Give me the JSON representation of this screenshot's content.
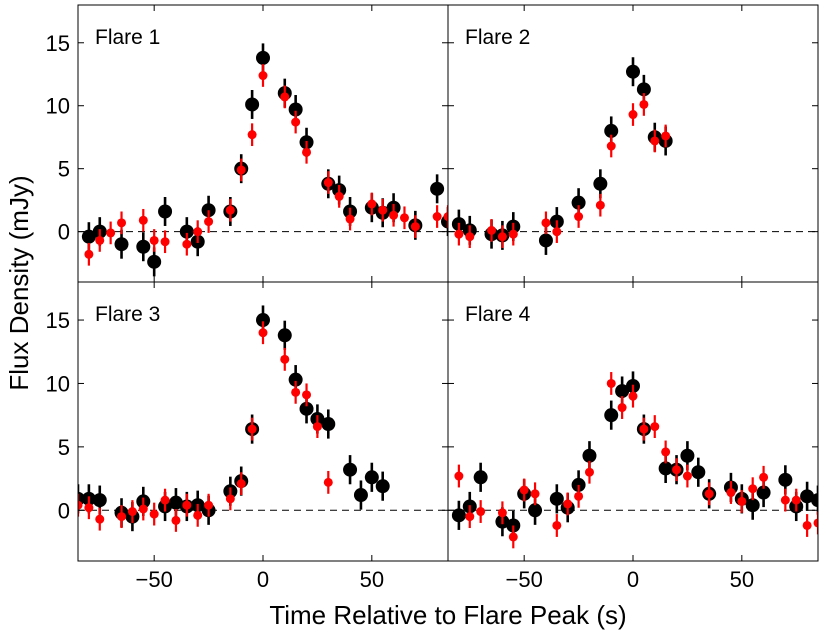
{
  "chart_data": {
    "type": "scatter",
    "xlabel": "Time Relative to Flare Peak  (s)",
    "ylabel": "Flux Density  (mJy)",
    "xlim": [
      -85,
      85
    ],
    "ylim": [
      -4,
      18
    ],
    "xticks": [
      -50,
      0,
      50
    ],
    "yticks": [
      0,
      5,
      10,
      15
    ],
    "reference_line": {
      "y": 0,
      "style": "dashed"
    },
    "series_colors": {
      "black": "#000000",
      "red": "#ff0000"
    },
    "panels": [
      {
        "title": "Flare 1",
        "series": [
          {
            "name": "black",
            "x": [
              -80,
              -75,
              -65,
              -55,
              -50,
              -45,
              -35,
              -30,
              -25,
              -15,
              -10,
              -5,
              0,
              10,
              15,
              20,
              30,
              35,
              40,
              50,
              55,
              60,
              70,
              80,
              85
            ],
            "y": [
              -0.4,
              0.0,
              -1.0,
              -1.2,
              -2.4,
              1.6,
              0.0,
              -0.8,
              1.7,
              1.6,
              5.0,
              10.1,
              13.8,
              11.0,
              9.7,
              7.1,
              3.8,
              3.3,
              1.6,
              1.9,
              1.5,
              1.9,
              0.5,
              3.4,
              0.8
            ]
          },
          {
            "name": "red",
            "x": [
              -80,
              -75,
              -70,
              -65,
              -55,
              -50,
              -45,
              -35,
              -30,
              -25,
              -15,
              -10,
              -5,
              0,
              10,
              15,
              20,
              30,
              35,
              40,
              50,
              55,
              60,
              65,
              70,
              80,
              85
            ],
            "y": [
              -1.8,
              -0.7,
              -0.1,
              0.7,
              0.9,
              -0.7,
              -0.8,
              -1.0,
              0.0,
              0.8,
              1.7,
              4.9,
              7.7,
              12.4,
              10.7,
              8.7,
              6.3,
              3.9,
              2.8,
              1.0,
              2.2,
              1.7,
              1.3,
              1.1,
              0.4,
              1.2,
              1.2
            ]
          }
        ]
      },
      {
        "title": "Flare 2",
        "series": [
          {
            "name": "black",
            "x": [
              -80,
              -75,
              -65,
              -60,
              -55,
              -40,
              -35,
              -25,
              -15,
              -10,
              0,
              5,
              10,
              15
            ],
            "y": [
              0.6,
              0.1,
              -0.2,
              -0.3,
              0.4,
              -0.7,
              0.8,
              2.3,
              3.8,
              8.0,
              12.7,
              11.3,
              7.5,
              7.2
            ]
          },
          {
            "name": "red",
            "x": [
              -80,
              -75,
              -65,
              -60,
              -55,
              -40,
              -35,
              -25,
              -15,
              -10,
              0,
              5,
              10,
              15
            ],
            "y": [
              -0.2,
              -0.4,
              0.1,
              -0.4,
              -0.2,
              0.7,
              0.0,
              1.2,
              2.1,
              6.8,
              9.3,
              10.1,
              7.2,
              7.6
            ]
          }
        ]
      },
      {
        "title": "Flare 3",
        "series": [
          {
            "name": "black",
            "x": [
              -85,
              -80,
              -75,
              -65,
              -60,
              -55,
              -45,
              -40,
              -35,
              -30,
              -25,
              -15,
              -10,
              -5,
              0,
              10,
              15,
              20,
              25,
              30,
              40,
              45,
              50,
              55
            ],
            "y": [
              0.9,
              0.9,
              0.8,
              -0.2,
              -0.5,
              0.7,
              0.3,
              0.6,
              0.3,
              0.4,
              0.0,
              1.5,
              2.3,
              6.4,
              15.0,
              13.8,
              10.3,
              8.0,
              7.2,
              6.8,
              3.2,
              1.2,
              2.6,
              1.9
            ]
          },
          {
            "name": "red",
            "x": [
              -85,
              -80,
              -75,
              -65,
              -60,
              -55,
              -50,
              -45,
              -40,
              -35,
              -30,
              -25,
              -15,
              -10,
              -5,
              0,
              10,
              15,
              20,
              25,
              30
            ],
            "y": [
              0.4,
              0.2,
              -0.7,
              -0.5,
              -0.1,
              0.1,
              -0.3,
              0.8,
              -0.8,
              0.4,
              -0.4,
              0.4,
              0.9,
              2.1,
              6.4,
              14.0,
              11.9,
              9.3,
              9.1,
              6.6,
              2.2
            ]
          }
        ]
      },
      {
        "title": "Flare 4",
        "series": [
          {
            "name": "black",
            "x": [
              -80,
              -75,
              -70,
              -60,
              -55,
              -50,
              -45,
              -35,
              -30,
              -25,
              -20,
              -10,
              -5,
              0,
              5,
              15,
              20,
              25,
              30,
              35,
              45,
              50,
              55,
              60,
              70,
              75,
              80,
              85
            ],
            "y": [
              -0.4,
              0.3,
              2.6,
              -0.9,
              -1.2,
              1.3,
              0.0,
              0.9,
              0.2,
              2.0,
              4.3,
              7.5,
              9.4,
              9.8,
              6.4,
              3.3,
              3.2,
              4.3,
              3.0,
              1.3,
              1.8,
              0.9,
              0.4,
              1.4,
              2.4,
              0.3,
              1.1,
              0.8
            ]
          },
          {
            "name": "red",
            "x": [
              -80,
              -75,
              -70,
              -60,
              -55,
              -50,
              -45,
              -35,
              -30,
              -25,
              -20,
              -10,
              -5,
              0,
              5,
              10,
              15,
              20,
              25,
              35,
              45,
              50,
              55,
              60,
              70,
              75,
              80,
              85
            ],
            "y": [
              2.7,
              -0.5,
              -0.1,
              -0.2,
              -2.1,
              1.6,
              1.3,
              -1.2,
              0.5,
              1.1,
              3.0,
              10.0,
              8.1,
              9.0,
              6.4,
              6.6,
              4.6,
              3.2,
              2.7,
              1.3,
              1.4,
              0.7,
              1.7,
              2.6,
              0.8,
              0.8,
              -1.2,
              -1.0
            ]
          }
        ]
      }
    ]
  }
}
